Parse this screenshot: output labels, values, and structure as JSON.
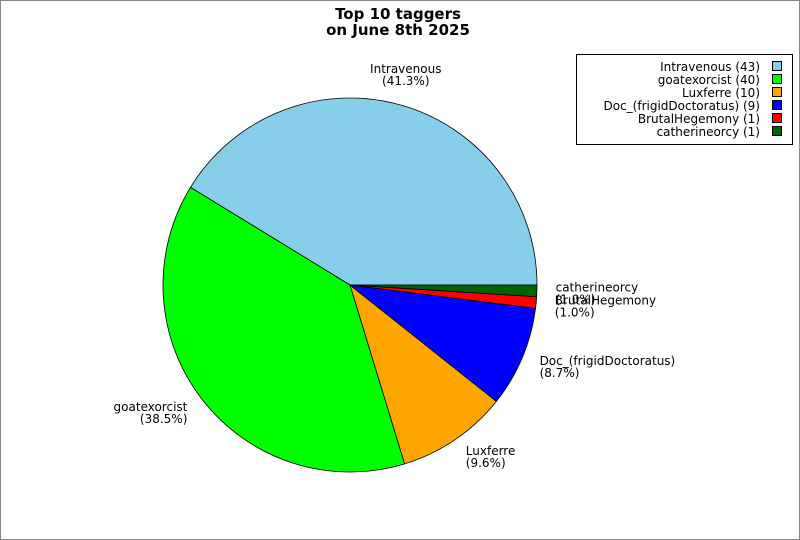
{
  "chart_data": {
    "type": "pie",
    "title": [
      "Top 10 taggers",
      "on June 8th 2025"
    ],
    "categories": [
      "Intravenous",
      "goatexorcist",
      "Luxferre",
      "Doc_(frigidDoctoratus)",
      "BrutalHegemony",
      "catherineorcy"
    ],
    "values": [
      41.3,
      38.5,
      9.6,
      8.7,
      1.0,
      1.0
    ],
    "value_labels": [
      "(41.3%)",
      "(38.5%)",
      "(9.6%)",
      "(8.7%)",
      "(1.0%)",
      "(1.0%)"
    ],
    "legend_labels": [
      "Intravenous (43)",
      "goatexorcist (40)",
      "Luxferre (10)",
      "Doc_(frigidDoctoratus) (9)",
      "BrutalHegemony (1)",
      "catherineorcy (1)"
    ],
    "colors": [
      "#87ceeb",
      "#00ff00",
      "#ffa500",
      "#0000ff",
      "#ff0000",
      "#006400"
    ],
    "legend_position": "upper right"
  }
}
